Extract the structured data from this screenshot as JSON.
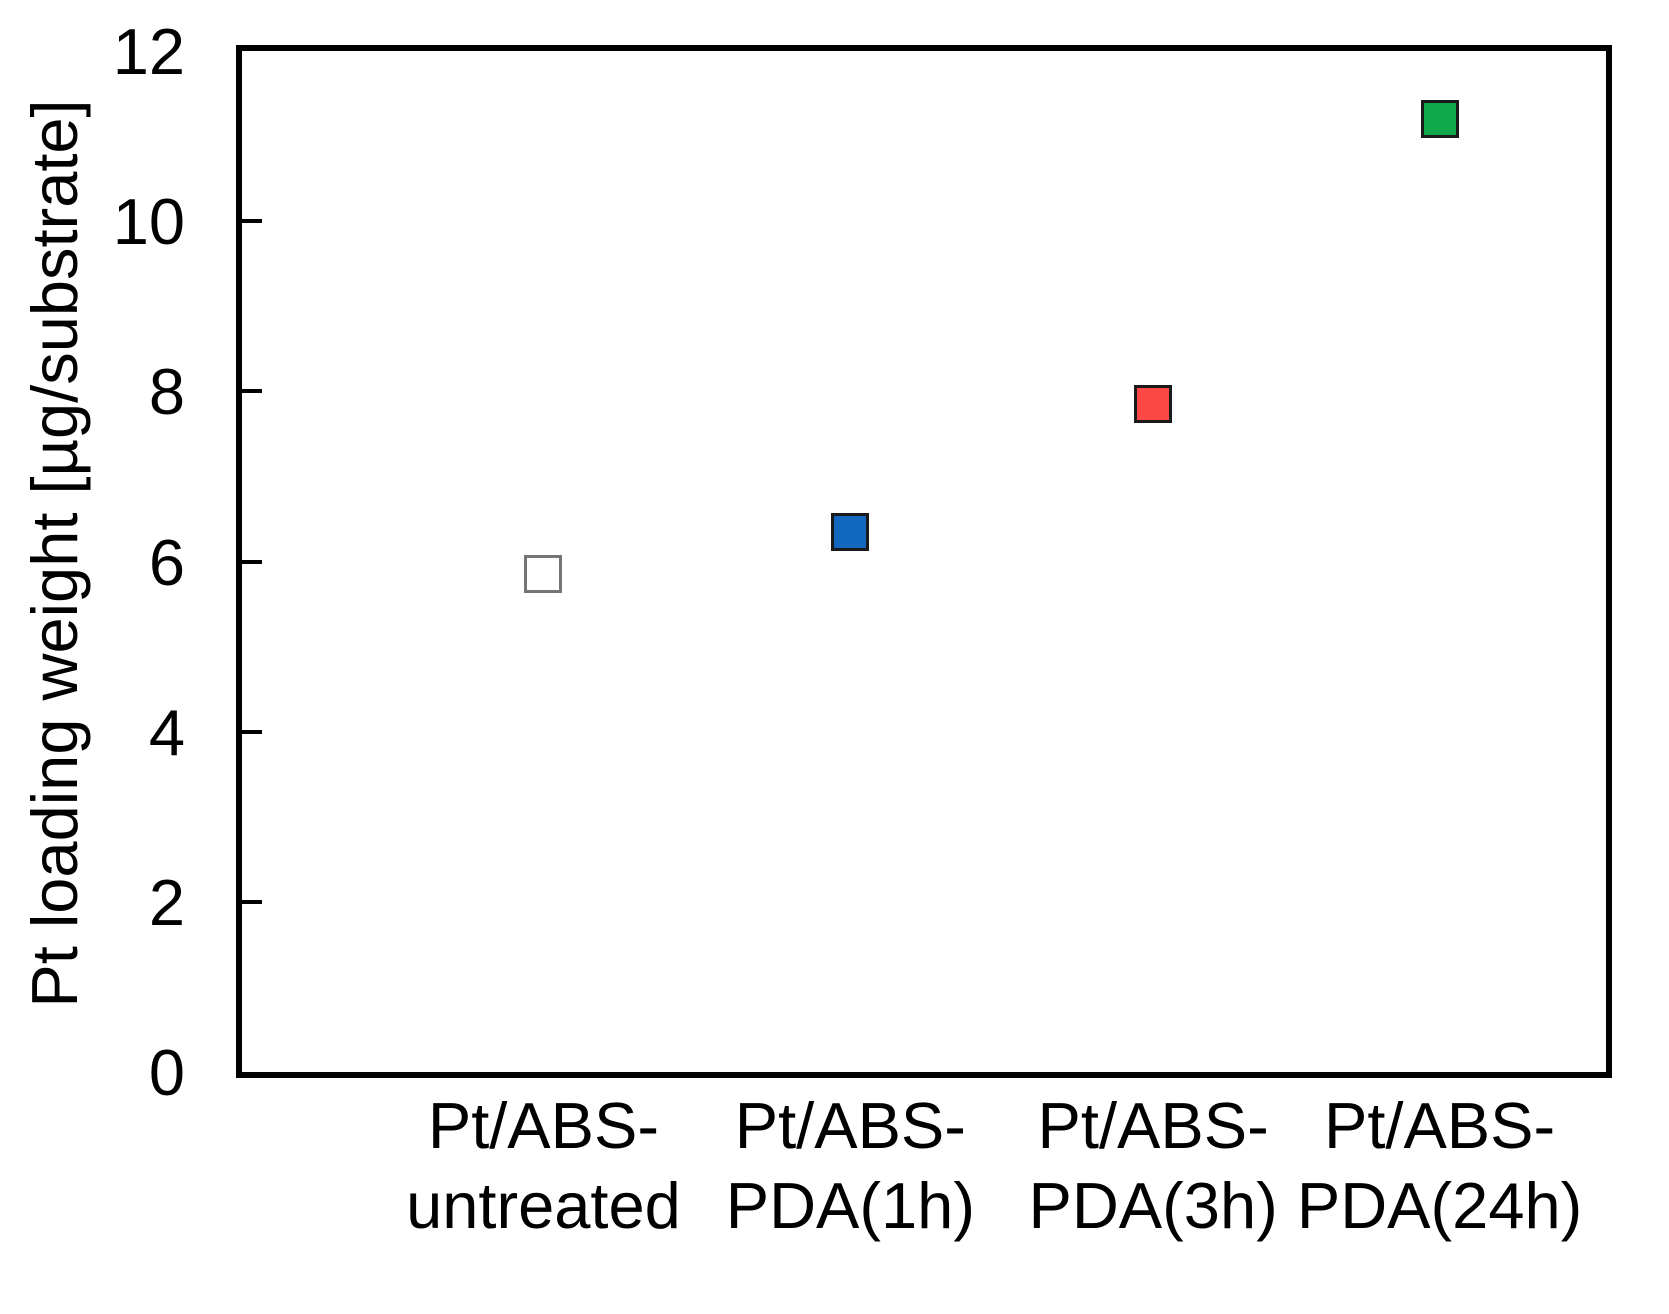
{
  "figure": {
    "background": "#ffffff",
    "frame_color": "#000000",
    "text_color": "#000000"
  },
  "chart_data": {
    "type": "scatter",
    "title": "",
    "xlabel": "",
    "ylabel": "Pt loading weight [µg/substrate]",
    "ylim": [
      0,
      12
    ],
    "yticks": [
      0,
      2,
      4,
      6,
      8,
      10,
      12
    ],
    "grid": false,
    "legend": "none",
    "marker_shape": "square",
    "categories": [
      "Pt/ABS-untreated",
      "Pt/ABS-PDA(1h)",
      "Pt/ABS-PDA(3h)",
      "Pt/ABS-PDA(24h)"
    ],
    "points": [
      {
        "id": "untreated",
        "category": "Pt/ABS-untreated",
        "label_line1": "Pt/ABS-",
        "label_line2": "untreated",
        "value": 5.85,
        "fill": "#ffffff",
        "stroke": "#757575",
        "x_frac": 0.221
      },
      {
        "id": "pda-1h",
        "category": "Pt/ABS-PDA(1h)",
        "label_line1": "Pt/ABS-",
        "label_line2": "PDA(1h)",
        "value": 6.35,
        "fill": "#1268be",
        "stroke": "#1a1a1a",
        "x_frac": 0.446
      },
      {
        "id": "pda-3h",
        "category": "Pt/ABS-PDA(3h)",
        "label_line1": "Pt/ABS-",
        "label_line2": "PDA(3h)",
        "value": 7.85,
        "fill": "#fb4845",
        "stroke": "#1a1a1a",
        "x_frac": 0.668
      },
      {
        "id": "pda-24h",
        "category": "Pt/ABS-PDA(24h)",
        "label_line1": "Pt/ABS-",
        "label_line2": "PDA(24h)",
        "value": 11.2,
        "fill": "#0fa84a",
        "stroke": "#1a1a1a",
        "x_frac": 0.878
      }
    ]
  }
}
